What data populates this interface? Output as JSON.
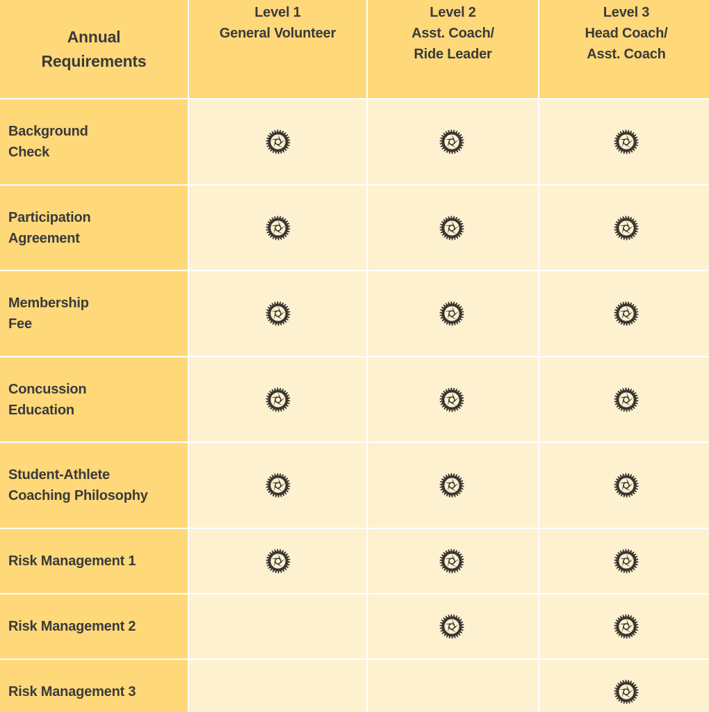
{
  "table": {
    "corner_header": [
      "Annual",
      "Requirements"
    ],
    "columns": [
      {
        "lines": [
          "Level   1",
          "General Volunteer"
        ]
      },
      {
        "lines": [
          "Level 2",
          "Asst. Coach/",
          "Ride Leader"
        ]
      },
      {
        "lines": [
          "Level 3",
          "Head Coach/",
          "Asst. Coach"
        ]
      }
    ],
    "rows": [
      {
        "label_lines": [
          "Background",
          "Check"
        ],
        "required": [
          true,
          true,
          true
        ]
      },
      {
        "label_lines": [
          "Participation",
          "Agreement"
        ],
        "required": [
          true,
          true,
          true
        ]
      },
      {
        "label_lines": [
          "Membership",
          "Fee"
        ],
        "required": [
          true,
          true,
          true
        ]
      },
      {
        "label_lines": [
          "Concussion",
          "Education"
        ],
        "required": [
          true,
          true,
          true
        ]
      },
      {
        "label_lines": [
          "Student-Athlete",
          "Coaching Philosophy"
        ],
        "required": [
          true,
          true,
          true
        ]
      },
      {
        "label_lines": [
          "Risk Management 1"
        ],
        "required": [
          true,
          true,
          true
        ]
      },
      {
        "label_lines": [
          "Risk Management 2"
        ],
        "required": [
          false,
          true,
          true
        ]
      },
      {
        "label_lines": [
          "Risk Management 3"
        ],
        "required": [
          false,
          false,
          true
        ]
      }
    ],
    "mark_icon": "chainring-gear-icon"
  },
  "colors": {
    "header_background": "#fed879",
    "cell_background": "#fef1d0",
    "text": "#3a3a3a",
    "gear": "#3a3732"
  }
}
